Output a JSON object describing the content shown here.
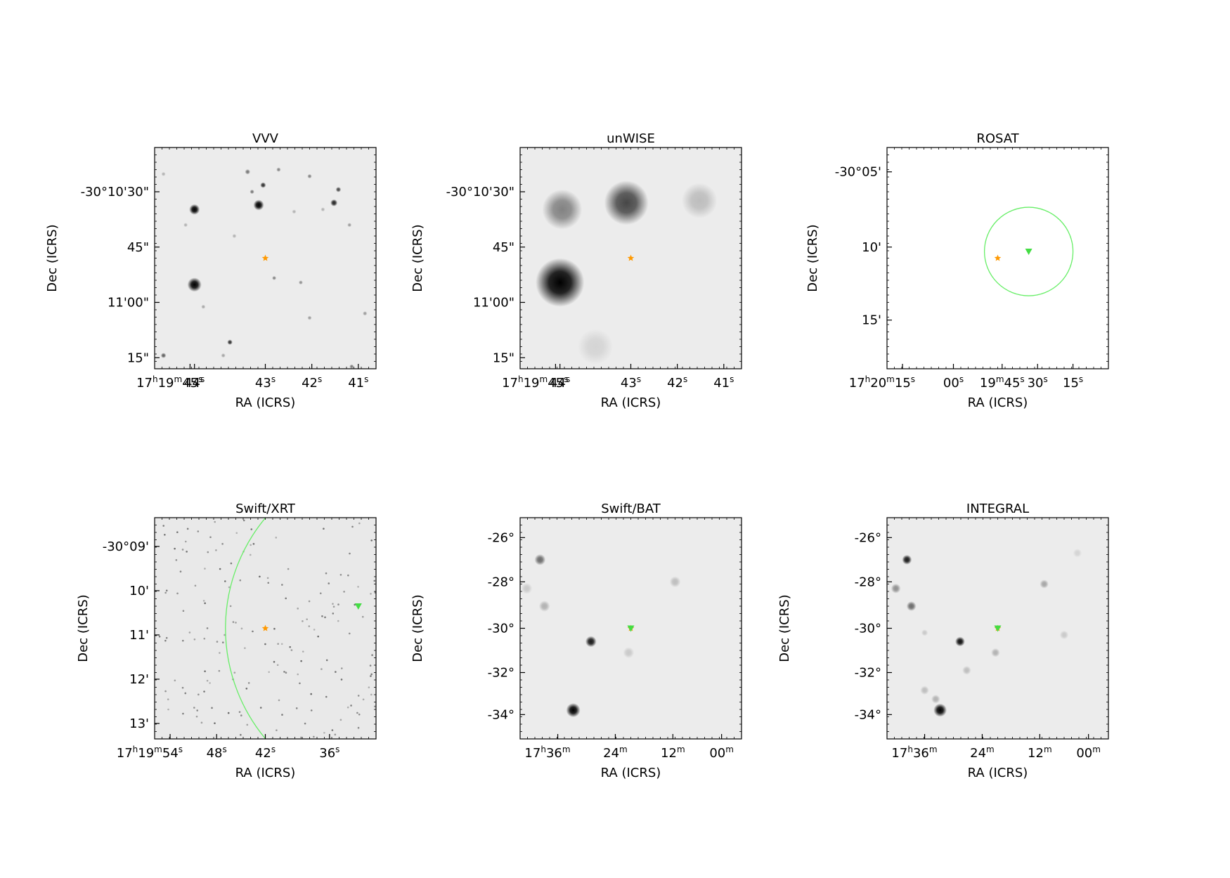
{
  "figure": {
    "background": "#ffffff"
  },
  "chart_data": [
    {
      "type": "image",
      "title": "VVV",
      "xlabel": "RA (ICRS)",
      "ylabel": "Dec (ICRS)",
      "background": "#ececec",
      "xticks": [
        "17h19m45s",
        "44s",
        "43s",
        "42s",
        "41s"
      ],
      "yticks": [
        "-30°10'30\"",
        "45\"",
        "11'00\"",
        "15\""
      ],
      "sources": [
        {
          "x": 0.18,
          "y": 0.28,
          "size": 0.024,
          "level": 1.0
        },
        {
          "x": 0.47,
          "y": 0.26,
          "size": 0.024,
          "level": 1.0
        },
        {
          "x": 0.18,
          "y": 0.62,
          "size": 0.032,
          "level": 1.0
        },
        {
          "x": 0.81,
          "y": 0.25,
          "size": 0.016,
          "level": 0.85
        },
        {
          "x": 0.83,
          "y": 0.19,
          "size": 0.012,
          "level": 0.7
        },
        {
          "x": 0.49,
          "y": 0.17,
          "size": 0.013,
          "level": 0.8
        },
        {
          "x": 0.42,
          "y": 0.11,
          "size": 0.012,
          "level": 0.5
        },
        {
          "x": 0.44,
          "y": 0.2,
          "size": 0.01,
          "level": 0.5
        },
        {
          "x": 0.56,
          "y": 0.1,
          "size": 0.01,
          "level": 0.45
        },
        {
          "x": 0.7,
          "y": 0.13,
          "size": 0.01,
          "level": 0.45
        },
        {
          "x": 0.34,
          "y": 0.88,
          "size": 0.012,
          "level": 0.8
        },
        {
          "x": 0.04,
          "y": 0.94,
          "size": 0.012,
          "level": 0.6
        },
        {
          "x": 0.54,
          "y": 0.59,
          "size": 0.009,
          "level": 0.45
        },
        {
          "x": 0.66,
          "y": 0.61,
          "size": 0.009,
          "level": 0.4
        },
        {
          "x": 0.7,
          "y": 0.77,
          "size": 0.009,
          "level": 0.35
        },
        {
          "x": 0.88,
          "y": 0.35,
          "size": 0.009,
          "level": 0.35
        },
        {
          "x": 0.95,
          "y": 0.75,
          "size": 0.01,
          "level": 0.35
        },
        {
          "x": 0.89,
          "y": 0.99,
          "size": 0.01,
          "level": 0.5
        },
        {
          "x": 0.31,
          "y": 0.94,
          "size": 0.01,
          "level": 0.3
        },
        {
          "x": 0.22,
          "y": 0.72,
          "size": 0.009,
          "level": 0.3
        },
        {
          "x": 0.14,
          "y": 0.35,
          "size": 0.008,
          "level": 0.25
        },
        {
          "x": 0.36,
          "y": 0.4,
          "size": 0.008,
          "level": 0.25
        },
        {
          "x": 0.63,
          "y": 0.29,
          "size": 0.008,
          "level": 0.25
        },
        {
          "x": 0.76,
          "y": 0.28,
          "size": 0.008,
          "level": 0.25
        },
        {
          "x": 0.04,
          "y": 0.12,
          "size": 0.008,
          "level": 0.25
        }
      ],
      "markers": {
        "star": {
          "x": 0.5,
          "y": 0.5,
          "color": "#ff9900"
        }
      }
    },
    {
      "type": "image",
      "title": "unWISE",
      "xlabel": "RA (ICRS)",
      "ylabel": "Dec (ICRS)",
      "background": "#ececec",
      "xticks": [
        "17h19m45s",
        "44s",
        "43s",
        "42s",
        "41s"
      ],
      "yticks": [
        "-30°10'30\"",
        "45\"",
        "11'00\"",
        "15\""
      ],
      "sources": [
        {
          "x": 0.18,
          "y": 0.61,
          "size": 0.11,
          "level": 1.0
        },
        {
          "x": 0.48,
          "y": 0.25,
          "size": 0.1,
          "level": 0.7
        },
        {
          "x": 0.19,
          "y": 0.28,
          "size": 0.09,
          "level": 0.45
        },
        {
          "x": 0.81,
          "y": 0.24,
          "size": 0.08,
          "level": 0.2
        },
        {
          "x": 0.34,
          "y": 0.9,
          "size": 0.08,
          "level": 0.1
        }
      ],
      "markers": {
        "star": {
          "x": 0.5,
          "y": 0.5,
          "color": "#ff9900"
        }
      }
    },
    {
      "type": "image",
      "title": "ROSAT",
      "xlabel": "RA (ICRS)",
      "ylabel": "Dec (ICRS)",
      "background": "#ffffff",
      "xticks": [
        "17h20m15s",
        "00s",
        "19m45s",
        "30s",
        "15s"
      ],
      "yticks": [
        "-30°05'",
        "10'",
        "15'"
      ],
      "sources": [],
      "markers": {
        "star": {
          "x": 0.5,
          "y": 0.5,
          "color": "#ff9900"
        },
        "triangle": {
          "x": 0.64,
          "y": 0.47,
          "color": "#44dd44"
        },
        "circle_radius": 0.2
      }
    },
    {
      "type": "image",
      "title": "Swift/XRT",
      "xlabel": "RA (ICRS)",
      "ylabel": "Dec (ICRS)",
      "background": "#e9e9e9",
      "xticks": [
        "17h19m54s",
        "48s",
        "42s",
        "36s"
      ],
      "yticks": [
        "-30°09'",
        "10'",
        "11'",
        "12'",
        "13'"
      ],
      "sources": [],
      "noise": {
        "count": 170,
        "seed": 42,
        "level": 0.55
      },
      "markers": {
        "star": {
          "x": 0.5,
          "y": 0.5,
          "color": "#ff9900"
        },
        "triangle": {
          "x": 0.92,
          "y": 0.4,
          "color": "#44dd44"
        },
        "arc": {
          "cx": 1.1,
          "cy": 0.5,
          "r": 0.78
        }
      }
    },
    {
      "type": "image",
      "title": "Swift/BAT",
      "xlabel": "RA (ICRS)",
      "ylabel": "Dec (ICRS)",
      "background": "#ececec",
      "xticks": [
        "17h36m",
        "24m",
        "12m",
        "00m"
      ],
      "yticks": [
        "-26°",
        "-28°",
        "-30°",
        "-32°",
        "-34°"
      ],
      "sources": [
        {
          "x": 0.24,
          "y": 0.87,
          "size": 0.032,
          "level": 1.0
        },
        {
          "x": 0.32,
          "y": 0.56,
          "size": 0.025,
          "level": 0.9
        },
        {
          "x": 0.09,
          "y": 0.19,
          "size": 0.025,
          "level": 0.55
        },
        {
          "x": 0.11,
          "y": 0.4,
          "size": 0.025,
          "level": 0.25
        },
        {
          "x": 0.7,
          "y": 0.29,
          "size": 0.025,
          "level": 0.2
        },
        {
          "x": 0.49,
          "y": 0.61,
          "size": 0.025,
          "level": 0.15
        },
        {
          "x": 0.03,
          "y": 0.32,
          "size": 0.025,
          "level": 0.15
        }
      ],
      "markers": {
        "star": {
          "x": 0.5,
          "y": 0.5,
          "color": "#ff9900"
        },
        "triangle": {
          "x": 0.5,
          "y": 0.5,
          "color": "#44dd44"
        }
      }
    },
    {
      "type": "image",
      "title": "INTEGRAL",
      "xlabel": "RA (ICRS)",
      "ylabel": "Dec (ICRS)",
      "background": "#ececec",
      "xticks": [
        "17h36m",
        "24m",
        "12m",
        "00m"
      ],
      "yticks": [
        "-26°",
        "-28°",
        "-30°",
        "-32°",
        "-34°"
      ],
      "sources": [
        {
          "x": 0.24,
          "y": 0.87,
          "size": 0.03,
          "level": 1.0
        },
        {
          "x": 0.33,
          "y": 0.56,
          "size": 0.022,
          "level": 0.95
        },
        {
          "x": 0.09,
          "y": 0.19,
          "size": 0.022,
          "level": 0.9
        },
        {
          "x": 0.11,
          "y": 0.4,
          "size": 0.022,
          "level": 0.55
        },
        {
          "x": 0.04,
          "y": 0.32,
          "size": 0.022,
          "level": 0.4
        },
        {
          "x": 0.71,
          "y": 0.3,
          "size": 0.02,
          "level": 0.3
        },
        {
          "x": 0.49,
          "y": 0.61,
          "size": 0.02,
          "level": 0.25
        },
        {
          "x": 0.36,
          "y": 0.69,
          "size": 0.02,
          "level": 0.2
        },
        {
          "x": 0.22,
          "y": 0.82,
          "size": 0.02,
          "level": 0.25
        },
        {
          "x": 0.8,
          "y": 0.53,
          "size": 0.02,
          "level": 0.15
        },
        {
          "x": 0.86,
          "y": 0.16,
          "size": 0.02,
          "level": 0.1
        },
        {
          "x": 0.17,
          "y": 0.78,
          "size": 0.02,
          "level": 0.2
        },
        {
          "x": 0.17,
          "y": 0.52,
          "size": 0.015,
          "level": 0.15
        }
      ],
      "markers": {
        "star": {
          "x": 0.5,
          "y": 0.5,
          "color": "#ff9900"
        },
        "triangle": {
          "x": 0.5,
          "y": 0.5,
          "color": "#44dd44"
        }
      }
    }
  ]
}
